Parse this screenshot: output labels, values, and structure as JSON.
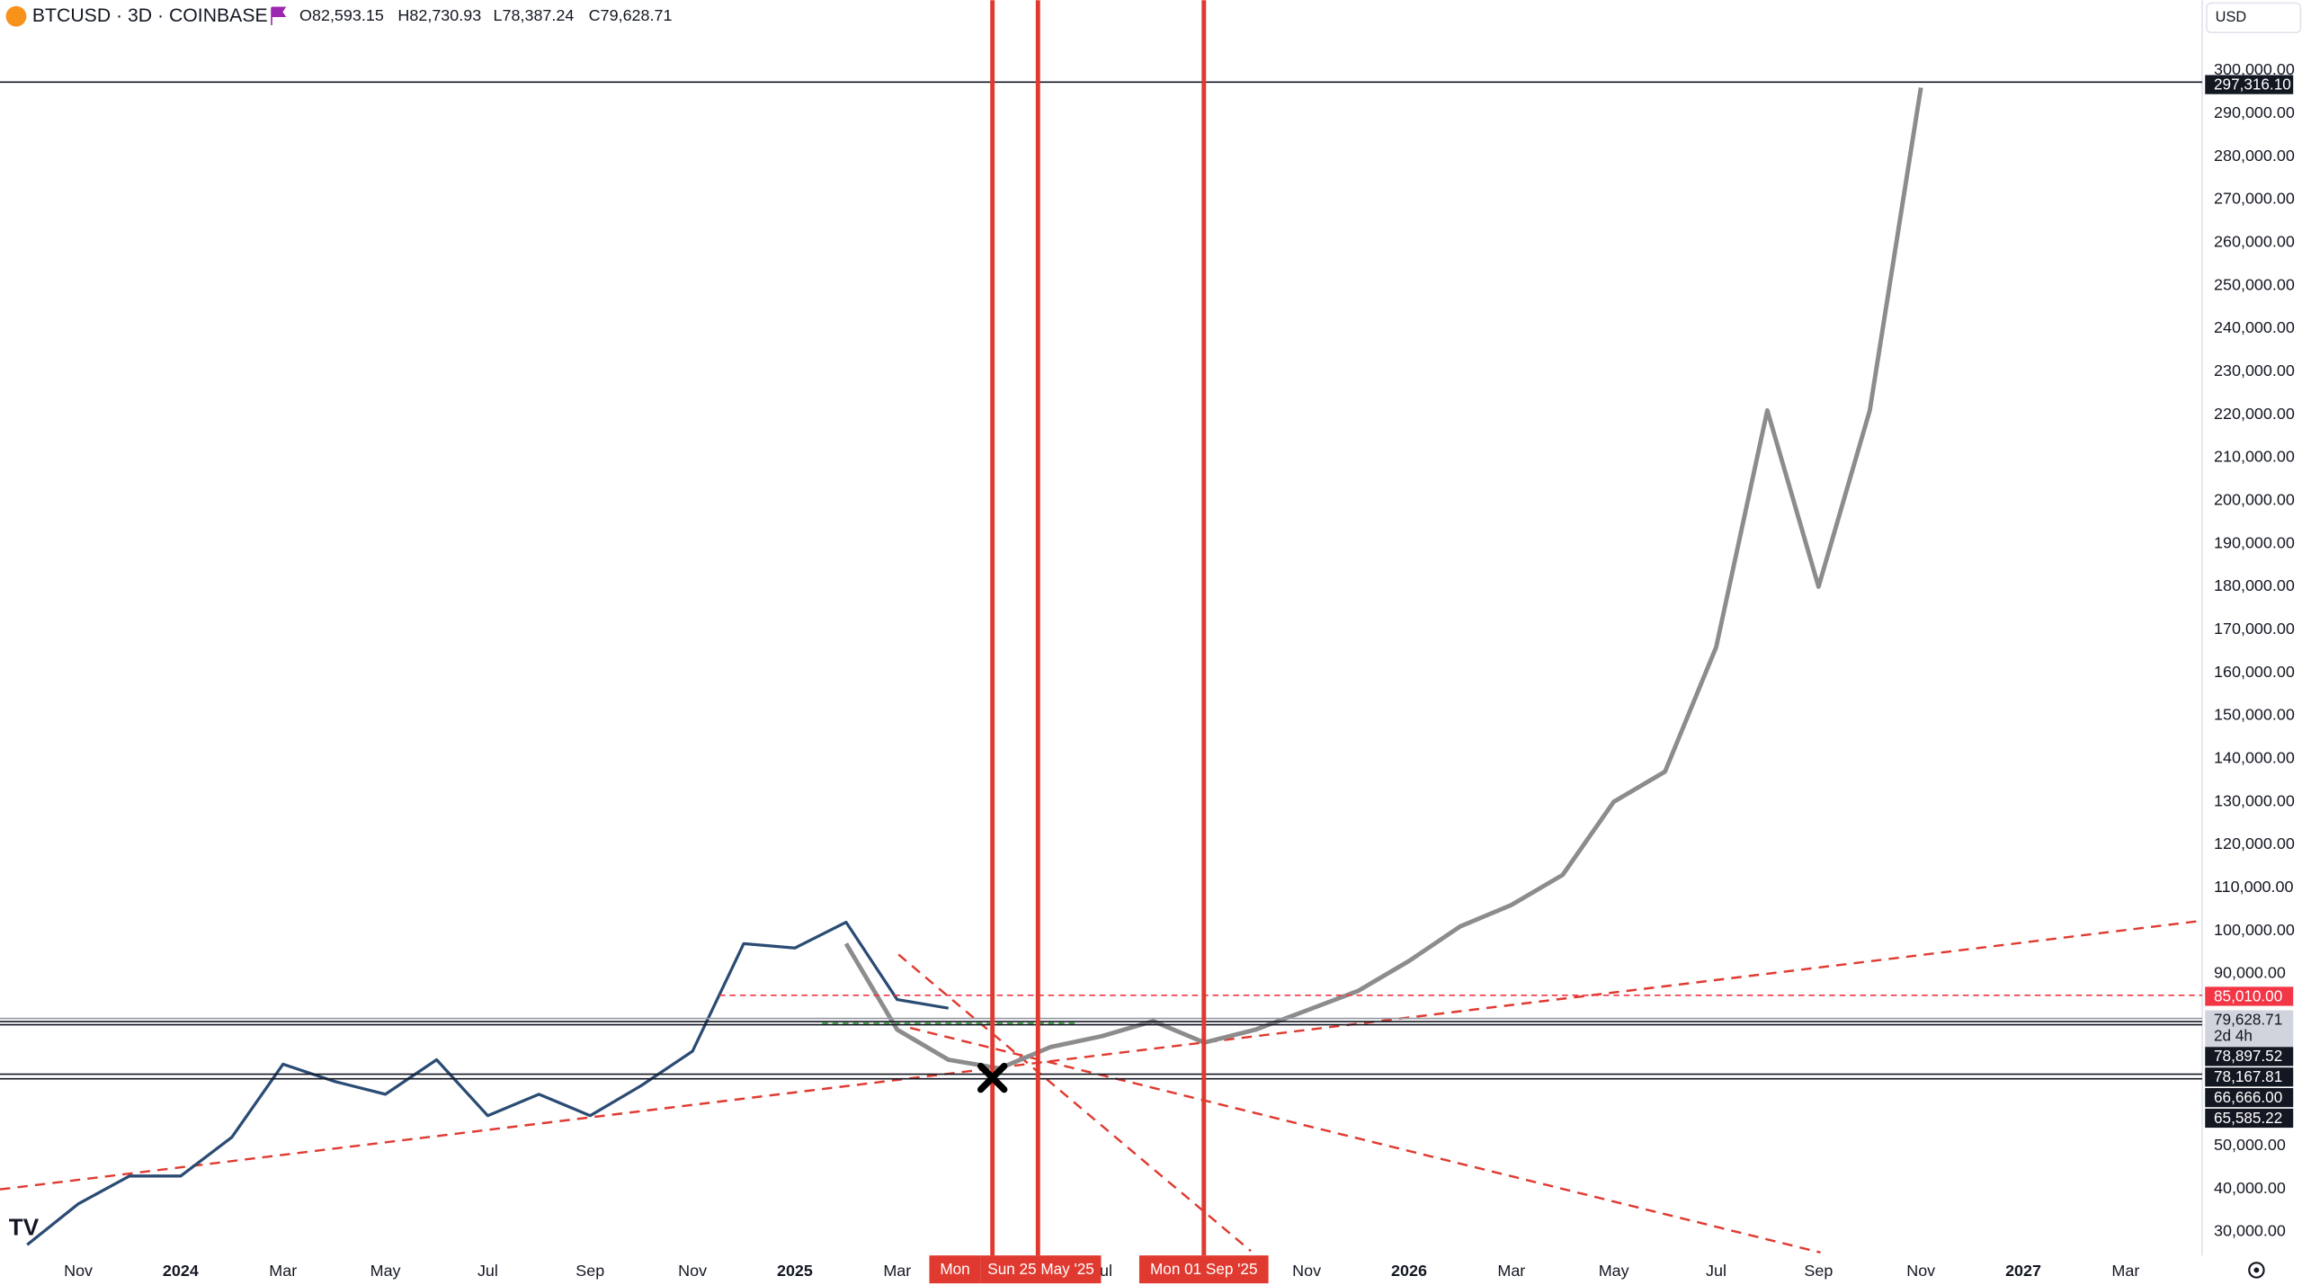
{
  "header": {
    "symbol": "BTCUSD · 3D · COINBASE",
    "open": "O82,593.15",
    "high": "H82,730.93",
    "low": "L78,387.24",
    "close": "C79,628.71",
    "currency": "USD"
  },
  "chart_data": {
    "type": "line",
    "x": [
      "2023-10",
      "2023-11",
      "2023-12",
      "2024-01",
      "2024-02",
      "2024-03",
      "2024-04",
      "2024-05",
      "2024-06",
      "2024-07",
      "2024-08",
      "2024-09",
      "2024-10",
      "2024-11",
      "2024-12",
      "2025-01",
      "2025-02",
      "2025-03",
      "2025-04",
      "2025-05",
      "2025-06",
      "2025-07",
      "2025-08",
      "2025-09",
      "2025-10",
      "2025-11",
      "2025-12",
      "2026-01",
      "2026-02",
      "2026-03",
      "2026-04",
      "2026-05",
      "2026-06",
      "2026-07",
      "2026-08",
      "2026-09",
      "2026-10",
      "2026-11"
    ],
    "series": [
      {
        "color": "#2a4b73",
        "values": [
          27000,
          36500,
          43000,
          43000,
          52000,
          69000,
          65000,
          62000,
          70000,
          57000,
          62000,
          57000,
          64000,
          72000,
          97000,
          96000,
          102000,
          84000,
          82000,
          null,
          null,
          null,
          null,
          null,
          null,
          null,
          null,
          null,
          null,
          null,
          null,
          null,
          null,
          null,
          null,
          null,
          null,
          null
        ]
      },
      {
        "color": "#8c8c8c",
        "values": [
          null,
          null,
          null,
          null,
          null,
          null,
          null,
          null,
          null,
          null,
          null,
          null,
          null,
          null,
          null,
          null,
          97000,
          77000,
          70000,
          68000,
          73000,
          75500,
          79000,
          74000,
          77000,
          81500,
          86000,
          93000,
          101000,
          106000,
          113000,
          130000,
          137000,
          166000,
          221000,
          180000,
          221000,
          296000
        ]
      }
    ],
    "xlim": [
      "2023-09",
      "2027-05"
    ],
    "xticks": [
      {
        "value": "2023-11",
        "label": "Nov"
      },
      {
        "value": "2024-01",
        "label": "2024"
      },
      {
        "value": "2024-03",
        "label": "Mar"
      },
      {
        "value": "2024-05",
        "label": "May"
      },
      {
        "value": "2024-07",
        "label": "Jul"
      },
      {
        "value": "2024-09",
        "label": "Sep"
      },
      {
        "value": "2024-11",
        "label": "Nov"
      },
      {
        "value": "2025-01",
        "label": "2025"
      },
      {
        "value": "2025-03",
        "label": "Mar"
      },
      {
        "value": "2025-07",
        "label": "Jul"
      },
      {
        "value": "2025-11",
        "label": "Nov"
      },
      {
        "value": "2026-01",
        "label": "2026"
      },
      {
        "value": "2026-03",
        "label": "Mar"
      },
      {
        "value": "2026-05",
        "label": "May"
      },
      {
        "value": "2026-07",
        "label": "Jul"
      },
      {
        "value": "2026-09",
        "label": "Sep"
      },
      {
        "value": "2026-11",
        "label": "Nov"
      },
      {
        "value": "2027-01",
        "label": "2027"
      },
      {
        "value": "2027-03",
        "label": "Mar"
      }
    ],
    "ylim": [
      25200,
      302700
    ],
    "yticks": [
      {
        "value": 30000,
        "label": "30,000.00"
      },
      {
        "value": 40000,
        "label": "40,000.00"
      },
      {
        "value": 50000,
        "label": "50,000.00"
      },
      {
        "value": 90000,
        "label": "90,000.00"
      },
      {
        "value": 100000,
        "label": "100,000.00"
      },
      {
        "value": 110000,
        "label": "110,000.00"
      },
      {
        "value": 120000,
        "label": "120,000.00"
      },
      {
        "value": 130000,
        "label": "130,000.00"
      },
      {
        "value": 140000,
        "label": "140,000.00"
      },
      {
        "value": 150000,
        "label": "150,000.00"
      },
      {
        "value": 160000,
        "label": "160,000.00"
      },
      {
        "value": 170000,
        "label": "170,000.00"
      },
      {
        "value": 180000,
        "label": "180,000.00"
      },
      {
        "value": 190000,
        "label": "190,000.00"
      },
      {
        "value": 200000,
        "label": "200,000.00"
      },
      {
        "value": 210000,
        "label": "210,000.00"
      },
      {
        "value": 220000,
        "label": "220,000.00"
      },
      {
        "value": 230000,
        "label": "230,000.00"
      },
      {
        "value": 240000,
        "label": "240,000.00"
      },
      {
        "value": 250000,
        "label": "250,000.00"
      },
      {
        "value": 260000,
        "label": "260,000.00"
      },
      {
        "value": 270000,
        "label": "270,000.00"
      },
      {
        "value": 280000,
        "label": "280,000.00"
      },
      {
        "value": 290000,
        "label": "290,000.00"
      },
      {
        "value": 300000,
        "label": "300,000.00"
      }
    ],
    "price_levels": [
      {
        "value": 297316.1,
        "label": "297,316.10",
        "color": "#131722"
      },
      {
        "value": 85010,
        "label": "85,010.00",
        "color": "#f23645",
        "line_style": "dashed"
      },
      {
        "value": 79628.71,
        "label": "79,628.71",
        "sub": "2d 4h",
        "color": "#d1d4dc"
      },
      {
        "value": 78897.52,
        "label": "78,897.52",
        "color": "#131722"
      },
      {
        "value": 78167.81,
        "label": "78,167.81",
        "color": "#131722"
      },
      {
        "value": 66666,
        "label": "66,666.00",
        "color": "#131722"
      },
      {
        "value": 65585.22,
        "label": "65,585.22",
        "color": "#131722"
      }
    ],
    "vlines": [
      {
        "label": "Mon"
      },
      {
        "label": "Sun 25 May '25"
      },
      {
        "label": "Mon 01 Sep '25"
      }
    ]
  }
}
